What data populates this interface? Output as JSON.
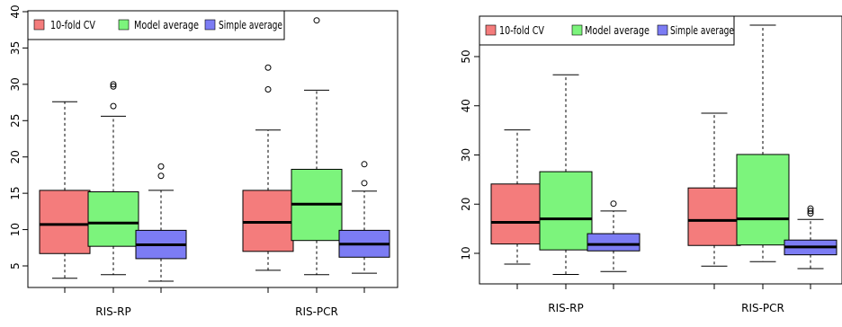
{
  "chart_data": [
    {
      "type": "boxplot",
      "title": "",
      "xlabel": "",
      "ylabel": "",
      "ylim": [
        3,
        40
      ],
      "yticks": [
        5,
        10,
        15,
        20,
        25,
        30,
        35,
        40
      ],
      "categories": [
        "RIS-RP",
        "RIS-PCR"
      ],
      "legend": {
        "position": "top",
        "entries": [
          "10-fold CV",
          "Model average",
          "Simple average"
        ]
      },
      "series": [
        {
          "name": "10-fold CV",
          "color": "#f47c7c",
          "boxes": [
            {
              "whisker_low": 3.3,
              "q1": 6.7,
              "median": 10.7,
              "q3": 15.4,
              "whisker_high": 27.6,
              "outliers": []
            },
            {
              "whisker_low": 4.4,
              "q1": 7.0,
              "median": 11.0,
              "q3": 15.4,
              "whisker_high": 23.7,
              "outliers": [
                29.3,
                32.3
              ]
            }
          ]
        },
        {
          "name": "Model average",
          "color": "#7cf47c",
          "boxes": [
            {
              "whisker_low": 3.8,
              "q1": 7.7,
              "median": 10.9,
              "q3": 15.2,
              "whisker_high": 25.6,
              "outliers": [
                27.0,
                29.7,
                30.0
              ]
            },
            {
              "whisker_low": 3.8,
              "q1": 8.5,
              "median": 13.5,
              "q3": 18.3,
              "whisker_high": 29.2,
              "outliers": [
                38.8
              ]
            }
          ]
        },
        {
          "name": "Simple average",
          "color": "#7c7cf4",
          "boxes": [
            {
              "whisker_low": 2.9,
              "q1": 6.0,
              "median": 7.9,
              "q3": 9.9,
              "whisker_high": 15.4,
              "outliers": [
                17.4,
                18.7
              ]
            },
            {
              "whisker_low": 4.0,
              "q1": 6.2,
              "median": 8.0,
              "q3": 9.9,
              "whisker_high": 15.3,
              "outliers": [
                16.4,
                19.0
              ]
            }
          ]
        }
      ]
    },
    {
      "type": "boxplot",
      "title": "",
      "xlabel": "",
      "ylabel": "",
      "ylim": [
        5,
        58
      ],
      "yticks": [
        10,
        20,
        30,
        40,
        50
      ],
      "categories": [
        "RIS-RP",
        "RIS-PCR"
      ],
      "legend": {
        "position": "top",
        "entries": [
          "10-fold CV",
          "Model average",
          "Simple average"
        ]
      },
      "series": [
        {
          "name": "10-fold CV",
          "color": "#f47c7c",
          "boxes": [
            {
              "whisker_low": 7.8,
              "q1": 11.9,
              "median": 16.3,
              "q3": 24.1,
              "whisker_high": 35.1,
              "outliers": []
            },
            {
              "whisker_low": 7.4,
              "q1": 11.6,
              "median": 16.7,
              "q3": 23.3,
              "whisker_high": 38.5,
              "outliers": []
            }
          ]
        },
        {
          "name": "Model average",
          "color": "#7cf47c",
          "boxes": [
            {
              "whisker_low": 5.7,
              "q1": 10.7,
              "median": 17.0,
              "q3": 26.6,
              "whisker_high": 46.3,
              "outliers": []
            },
            {
              "whisker_low": 8.3,
              "q1": 11.7,
              "median": 17.0,
              "q3": 30.1,
              "whisker_high": 56.4,
              "outliers": []
            }
          ]
        },
        {
          "name": "Simple average",
          "color": "#7c7cf4",
          "boxes": [
            {
              "whisker_low": 6.3,
              "q1": 10.5,
              "median": 11.8,
              "q3": 14.0,
              "whisker_high": 18.6,
              "outliers": [
                20.1
              ]
            },
            {
              "whisker_low": 6.9,
              "q1": 9.7,
              "median": 11.3,
              "q3": 12.7,
              "whisker_high": 16.9,
              "outliers": [
                18.1,
                18.6,
                19.1
              ]
            }
          ]
        }
      ]
    }
  ]
}
